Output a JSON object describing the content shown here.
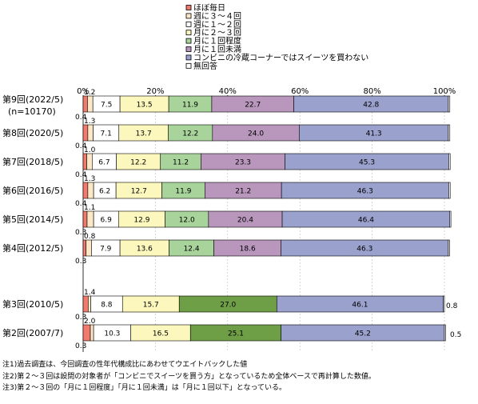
{
  "chart_data": {
    "type": "bar",
    "orientation": "horizontal",
    "stacked": true,
    "title": "",
    "xlim": [
      0,
      100
    ],
    "x_tick_labels": [
      "0%",
      "20%",
      "40%",
      "60%",
      "80%",
      "100%"
    ],
    "legend_position": "top-center",
    "legend": [
      {
        "name": "ほぼ毎日",
        "color": "#f07a6e"
      },
      {
        "name": "週に３～４回",
        "color": "#fce8c6"
      },
      {
        "name": "週に１～２回",
        "color": "#ffffff"
      },
      {
        "name": "月に２～３回",
        "color": "#fbf7bd"
      },
      {
        "name": "月に１回程度",
        "color": "#a8d39a"
      },
      {
        "name": "月に１回未満",
        "color": "#b997bd"
      },
      {
        "name": "コンビニの冷蔵コーナーではスイーツを買わない",
        "color": "#9aa1cc"
      },
      {
        "name": "無回答",
        "color": "#ffffff"
      }
    ],
    "rows": [
      {
        "label": "第9回(2022/5)",
        "sublabel": "(n=10170)",
        "kind": "split",
        "values": [
          1.2,
          1.5,
          7.5,
          13.5,
          11.9,
          22.7,
          42.8,
          0.4
        ],
        "labels": [
          "1.2",
          "",
          "7.5",
          "13.5",
          "11.9",
          "22.7",
          "42.8",
          "0.4"
        ]
      },
      {
        "label": "第8回(2020/5)",
        "kind": "split",
        "values": [
          1.3,
          1.5,
          7.1,
          13.7,
          12.2,
          24.0,
          41.3,
          0.4
        ],
        "labels": [
          "1.3",
          "",
          "7.1",
          "13.7",
          "12.2",
          "24.0",
          "41.3",
          "0.4"
        ]
      },
      {
        "label": "第7回(2018/5)",
        "kind": "split",
        "values": [
          1.0,
          1.5,
          6.7,
          12.2,
          11.2,
          23.3,
          45.3,
          0.4
        ],
        "labels": [
          "1.0",
          "",
          "6.7",
          "12.2",
          "11.2",
          "23.3",
          "45.3",
          "0.4"
        ]
      },
      {
        "label": "第6回(2016/5)",
        "kind": "split",
        "values": [
          1.3,
          1.6,
          6.2,
          12.7,
          11.9,
          21.2,
          46.3,
          0.4
        ],
        "labels": [
          "1.3",
          "",
          "6.2",
          "12.7",
          "11.9",
          "21.2",
          "46.3",
          "0.4"
        ]
      },
      {
        "label": "第5回(2014/5)",
        "kind": "split",
        "values": [
          1.1,
          1.8,
          6.9,
          12.9,
          12.0,
          20.4,
          46.4,
          0.3
        ],
        "labels": [
          "1.1",
          "",
          "6.9",
          "12.9",
          "12.0",
          "20.4",
          "46.4",
          "0.3"
        ]
      },
      {
        "label": "第4回(2012/5)",
        "kind": "split",
        "values": [
          0.8,
          1.5,
          7.9,
          13.6,
          12.4,
          18.6,
          46.3,
          0.3
        ],
        "labels": [
          "0.8",
          "",
          "7.9",
          "13.6",
          "12.4",
          "18.6",
          "46.3",
          "0.3"
        ]
      },
      {
        "label": "第3回(2010/5)",
        "kind": "combined",
        "values": [
          1.4,
          0.7,
          8.8,
          15.7,
          27.0,
          46.1,
          0.3
        ],
        "labels": [
          "1.4",
          "",
          "8.8",
          "15.7",
          "27.0",
          "46.1",
          "0.3"
        ]
      },
      {
        "label": "第2回(2007/7)",
        "kind": "combined",
        "values": [
          2.0,
          0.9,
          10.3,
          16.5,
          25.1,
          45.2,
          0.3
        ],
        "labels": [
          "2.0",
          "",
          "10.3",
          "16.5",
          "25.1",
          "45.2",
          "0.3"
        ]
      }
    ],
    "right_labels": [
      "0.8",
      "0.5"
    ],
    "combined_color": "#6e9e46"
  },
  "notes": [
    "注1)過去調査は、今回調査の性年代構成比にあわせてウエイトバックした値",
    "注2)第２～３回は設問の対象者が「コンビニでスイーツを買う方」となっているため全体ベースで再計算した数値。",
    "注3)第２～３回の「月に１回程度」「月に１回未満」は「月に１回以下」となっている。"
  ]
}
